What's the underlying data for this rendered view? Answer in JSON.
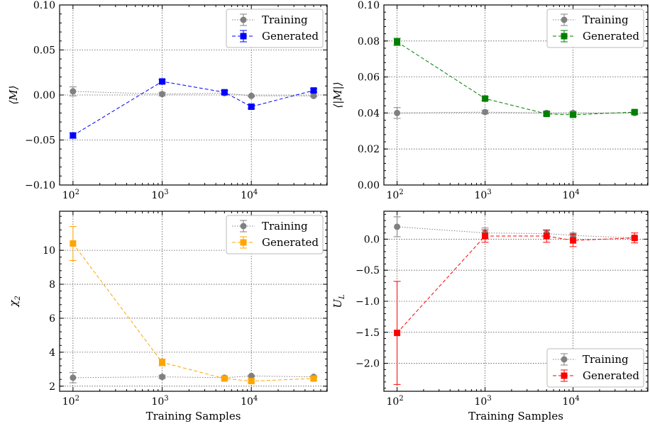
{
  "chart_data": [
    {
      "id": "m",
      "type": "line",
      "xscale": "log",
      "xlim_exp": [
        1.85,
        4.85
      ],
      "ylim": [
        -0.1,
        0.1
      ],
      "yticks": [
        -0.1,
        -0.05,
        0.0,
        0.05,
        0.1
      ],
      "ytick_labels": [
        "−0.10",
        "−0.05",
        "0.00",
        "0.05",
        "0.10"
      ],
      "xticks": [
        100,
        1000,
        10000
      ],
      "xtick_base": "10",
      "xtick_exps": [
        "2",
        "3",
        "4"
      ],
      "ylabel": "⟨M⟩",
      "xlabel": "",
      "grid": true,
      "legend": "top-right",
      "series": [
        {
          "name": "Training",
          "style": "dotted",
          "marker": "circle",
          "color": "#808080",
          "x": [
            100,
            1000,
            5000,
            10000,
            50000
          ],
          "y": [
            0.004,
            0.001,
            0.002,
            -0.001,
            -0.001
          ],
          "err": [
            0.005,
            0.002,
            0.002,
            0.001,
            0.001
          ]
        },
        {
          "name": "Generated",
          "style": "dashed",
          "marker": "square",
          "color": "#0000ff",
          "x": [
            100,
            1000,
            5000,
            10000,
            50000
          ],
          "y": [
            -0.045,
            0.015,
            0.003,
            -0.013,
            0.005
          ],
          "err": [
            0.003,
            0.002,
            0.002,
            0.002,
            0.002
          ]
        }
      ]
    },
    {
      "id": "absm",
      "type": "line",
      "xscale": "log",
      "xlim_exp": [
        1.85,
        4.85
      ],
      "ylim": [
        0.0,
        0.1
      ],
      "yticks": [
        0.0,
        0.02,
        0.04,
        0.06,
        0.08,
        0.1
      ],
      "ytick_labels": [
        "0.00",
        "0.02",
        "0.04",
        "0.06",
        "0.08",
        "0.10"
      ],
      "xticks": [
        100,
        1000,
        10000
      ],
      "xtick_base": "10",
      "xtick_exps": [
        "2",
        "3",
        "4"
      ],
      "ylabel": "⟨|M|⟩",
      "xlabel": "",
      "grid": true,
      "legend": "top-right",
      "series": [
        {
          "name": "Training",
          "style": "dotted",
          "marker": "circle",
          "color": "#808080",
          "x": [
            100,
            1000,
            5000,
            10000,
            50000
          ],
          "y": [
            0.04,
            0.0405,
            0.04,
            0.04,
            0.04
          ],
          "err": [
            0.003,
            0.001,
            0.001,
            0.001,
            0.001
          ]
        },
        {
          "name": "Generated",
          "style": "dashed",
          "marker": "square",
          "color": "#008000",
          "x": [
            100,
            1000,
            5000,
            10000,
            50000
          ],
          "y": [
            0.0795,
            0.048,
            0.0395,
            0.039,
            0.0405
          ],
          "err": [
            0.002,
            0.001,
            0.001,
            0.001,
            0.001
          ]
        }
      ]
    },
    {
      "id": "chi",
      "type": "line",
      "xscale": "log",
      "xlim_exp": [
        1.85,
        4.85
      ],
      "ylim": [
        1.7,
        12.3
      ],
      "yticks": [
        2,
        4,
        6,
        8,
        10
      ],
      "ytick_labels": [
        "2",
        "4",
        "6",
        "8",
        "10"
      ],
      "xticks": [
        100,
        1000,
        10000
      ],
      "xtick_base": "10",
      "xtick_exps": [
        "2",
        "3",
        "4"
      ],
      "ylabel": "χ",
      "ylabel_sub": "2",
      "xlabel": "Training Samples",
      "grid": true,
      "legend": "top-right",
      "series": [
        {
          "name": "Training",
          "style": "dotted",
          "marker": "circle",
          "color": "#808080",
          "x": [
            100,
            1000,
            5000,
            10000,
            50000
          ],
          "y": [
            2.5,
            2.55,
            2.5,
            2.6,
            2.55
          ],
          "err": [
            0.3,
            0.1,
            0.05,
            0.05,
            0.05
          ]
        },
        {
          "name": "Generated",
          "style": "dashed",
          "marker": "square",
          "color": "#ffa500",
          "x": [
            100,
            1000,
            5000,
            10000,
            50000
          ],
          "y": [
            10.4,
            3.4,
            2.45,
            2.3,
            2.45
          ],
          "err": [
            1.0,
            0.2,
            0.1,
            0.1,
            0.1
          ]
        }
      ]
    },
    {
      "id": "ul",
      "type": "line",
      "xscale": "log",
      "xlim_exp": [
        1.85,
        4.85
      ],
      "ylim": [
        -2.45,
        0.45
      ],
      "yticks": [
        -2.0,
        -1.5,
        -1.0,
        -0.5,
        0.0
      ],
      "ytick_labels": [
        "−2.0",
        "−1.5",
        "−1.0",
        "−0.5",
        "0.0"
      ],
      "xticks": [
        100,
        1000,
        10000
      ],
      "xtick_base": "10",
      "xtick_exps": [
        "2",
        "3",
        "4"
      ],
      "ylabel": "U",
      "ylabel_sub": "L",
      "xlabel": "Training Samples",
      "grid": true,
      "legend": "bottom-right",
      "series": [
        {
          "name": "Training",
          "style": "dotted",
          "marker": "circle",
          "color": "#808080",
          "x": [
            100,
            1000,
            5000,
            10000,
            50000
          ],
          "y": [
            0.2,
            0.1,
            0.09,
            0.06,
            0.02
          ],
          "err": [
            0.16,
            0.08,
            0.05,
            0.04,
            0.02
          ]
        },
        {
          "name": "Generated",
          "style": "dashed",
          "marker": "square",
          "color": "#ff0000",
          "x": [
            100,
            1000,
            5000,
            10000,
            50000
          ],
          "y": [
            -1.51,
            0.05,
            0.05,
            -0.02,
            0.02
          ],
          "err": [
            0.83,
            0.1,
            0.1,
            0.1,
            0.08
          ]
        }
      ]
    }
  ]
}
